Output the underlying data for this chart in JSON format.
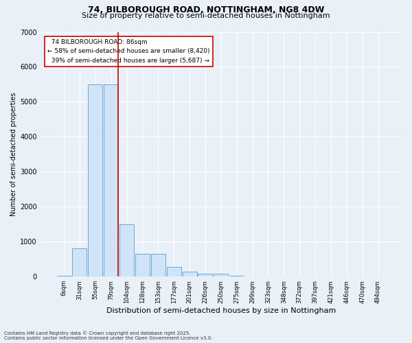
{
  "title1": "74, BILBOROUGH ROAD, NOTTINGHAM, NG8 4DW",
  "title2": "Size of property relative to semi-detached houses in Nottingham",
  "xlabel": "Distribution of semi-detached houses by size in Nottingham",
  "ylabel": "Number of semi-detached properties",
  "categories": [
    "6sqm",
    "31sqm",
    "55sqm",
    "79sqm",
    "104sqm",
    "128sqm",
    "153sqm",
    "177sqm",
    "201sqm",
    "226sqm",
    "250sqm",
    "275sqm",
    "299sqm",
    "323sqm",
    "348sqm",
    "372sqm",
    "397sqm",
    "421sqm",
    "446sqm",
    "470sqm",
    "494sqm"
  ],
  "bar_heights": [
    25,
    800,
    5500,
    5500,
    1500,
    650,
    650,
    270,
    150,
    80,
    80,
    30,
    0,
    0,
    0,
    0,
    0,
    0,
    0,
    0,
    0
  ],
  "bar_color": "#d0e4f7",
  "bar_edge_color": "#6aaad4",
  "red_line_index": 3,
  "property_sqm": 86,
  "property_name": "74 BILBOROUGH ROAD",
  "pct_smaller": 58,
  "n_smaller": 8420,
  "pct_larger": 39,
  "n_larger": 5687,
  "annotation_box_color": "#ffffff",
  "annotation_box_edge": "#cc0000",
  "line_color": "#cc0000",
  "ylim": [
    0,
    7000
  ],
  "yticks": [
    0,
    1000,
    2000,
    3000,
    4000,
    5000,
    6000,
    7000
  ],
  "footnote1": "Contains HM Land Registry data © Crown copyright and database right 2025.",
  "footnote2": "Contains public sector information licensed under the Open Government Licence v3.0.",
  "bg_color": "#eaf0f8",
  "grid_color": "#ffffff",
  "title1_fontsize": 9,
  "title2_fontsize": 8,
  "xlabel_fontsize": 8,
  "ylabel_fontsize": 7,
  "ytick_fontsize": 7,
  "xtick_fontsize": 6,
  "footnote_fontsize": 5
}
